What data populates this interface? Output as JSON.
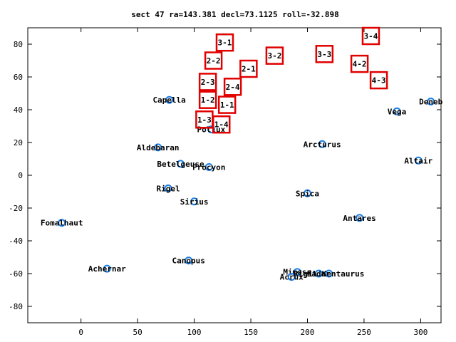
{
  "chart_data": {
    "type": "scatter",
    "title": "sect 47 ra=143.381 decl=73.1125 roll=-32.898",
    "xlabel": "",
    "ylabel": "",
    "xlim": [
      -47,
      318
    ],
    "ylim": [
      -90,
      90
    ],
    "xticks": [
      0,
      50,
      100,
      150,
      200,
      250,
      300
    ],
    "yticks": [
      -80,
      -60,
      -40,
      -20,
      0,
      20,
      40,
      60,
      80
    ],
    "grid": false,
    "legend": "none",
    "star_color": "#1c7fe6",
    "box_color": "#e00000",
    "stars": [
      {
        "name": "Capella",
        "x": 78,
        "y": 46
      },
      {
        "name": "Pollux",
        "x": 115,
        "y": 28
      },
      {
        "name": "Aldebaran",
        "x": 68,
        "y": 17
      },
      {
        "name": "Betelgeuse",
        "x": 88,
        "y": 7
      },
      {
        "name": "Procyon",
        "x": 113,
        "y": 5
      },
      {
        "name": "Rigel",
        "x": 77,
        "y": -8
      },
      {
        "name": "Sirius",
        "x": 100,
        "y": -16
      },
      {
        "name": "Fomalhaut",
        "x": -17,
        "y": -29
      },
      {
        "name": "Achernar",
        "x": 23,
        "y": -57
      },
      {
        "name": "Canopus",
        "x": 95,
        "y": -52
      },
      {
        "name": "Arcturus",
        "x": 213,
        "y": 19
      },
      {
        "name": "Spica",
        "x": 200,
        "y": -11
      },
      {
        "name": "Antares",
        "x": 246,
        "y": -26
      },
      {
        "name": "Vega",
        "x": 279,
        "y": 39
      },
      {
        "name": "Deneb",
        "x": 309,
        "y": 45
      },
      {
        "name": "Altair",
        "x": 298,
        "y": 9
      },
      {
        "name": "Mimosa",
        "x": 191,
        "y": -59
      },
      {
        "name": "Acrux",
        "x": 186,
        "y": -62
      },
      {
        "name": "Hadar",
        "x": 210,
        "y": -60
      },
      {
        "name": "Rigil Kentaurus",
        "x": 219,
        "y": -60
      }
    ],
    "boxes": [
      {
        "name": "3-1",
        "x": 127,
        "y": 81
      },
      {
        "name": "2-2",
        "x": 117,
        "y": 70
      },
      {
        "name": "2-1",
        "x": 148,
        "y": 65
      },
      {
        "name": "3-2",
        "x": 171,
        "y": 73
      },
      {
        "name": "3-3",
        "x": 215,
        "y": 74
      },
      {
        "name": "3-4",
        "x": 256,
        "y": 85
      },
      {
        "name": "4-2",
        "x": 246,
        "y": 68
      },
      {
        "name": "4-3",
        "x": 263,
        "y": 58
      },
      {
        "name": "2-3",
        "x": 112,
        "y": 57
      },
      {
        "name": "2-4",
        "x": 134,
        "y": 54
      },
      {
        "name": "1-2",
        "x": 112,
        "y": 46
      },
      {
        "name": "1-1",
        "x": 129,
        "y": 43
      },
      {
        "name": "1-3",
        "x": 109,
        "y": 34
      },
      {
        "name": "1-4",
        "x": 124,
        "y": 31
      }
    ]
  }
}
